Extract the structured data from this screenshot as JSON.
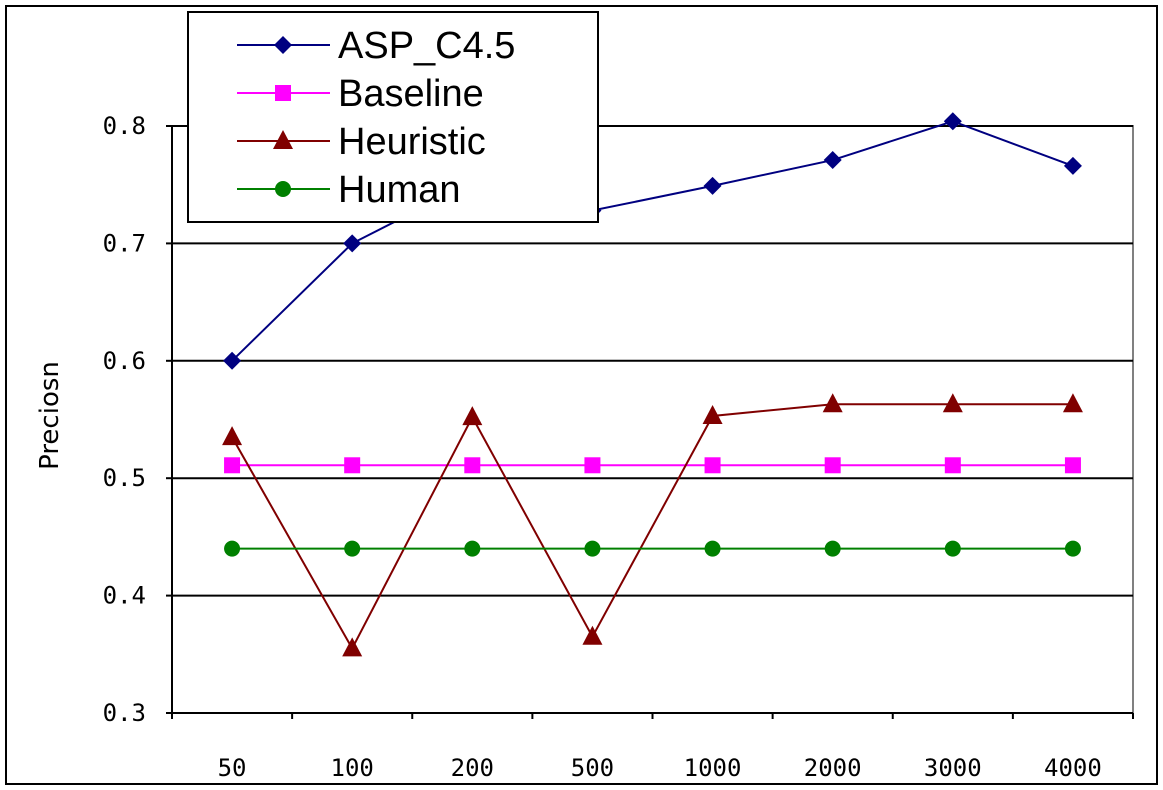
{
  "chart_data": {
    "type": "line",
    "categories": [
      "50",
      "100",
      "200",
      "500",
      "1000",
      "2000",
      "3000",
      "4000"
    ],
    "ylabel": "Preciosn",
    "xlabel": "",
    "ylim": [
      0.3,
      0.8
    ],
    "yticks": [
      0.3,
      0.4,
      0.5,
      0.6,
      0.7,
      0.8
    ],
    "ytick_labels": [
      "0.3",
      "0.4",
      "0.5",
      "0.6",
      "0.7",
      "0.8"
    ],
    "grid": true,
    "legend_position": "top-left",
    "series": [
      {
        "name": "ASP_C4.5",
        "color": "#000080",
        "marker": "diamond",
        "values": [
          0.6,
          0.7,
          0.752,
          0.728,
          0.749,
          0.771,
          0.804,
          0.766
        ]
      },
      {
        "name": "Baseline",
        "color": "#ff00ff",
        "marker": "square",
        "values": [
          0.511,
          0.511,
          0.511,
          0.511,
          0.511,
          0.511,
          0.511,
          0.511
        ]
      },
      {
        "name": "Heuristic",
        "color": "#800000",
        "marker": "triangle",
        "values": [
          0.535,
          0.355,
          0.552,
          0.365,
          0.553,
          0.563,
          0.563,
          0.563
        ]
      },
      {
        "name": "Human",
        "color": "#008000",
        "marker": "circle",
        "values": [
          0.44,
          0.44,
          0.44,
          0.44,
          0.44,
          0.44,
          0.44,
          0.44
        ]
      }
    ]
  }
}
